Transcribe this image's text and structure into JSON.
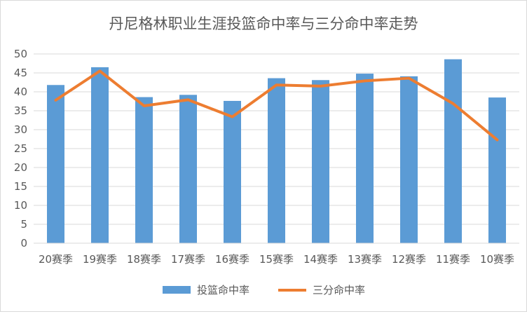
{
  "chart_data": {
    "type": "bar",
    "title": "丹尼格林职业生涯投篮命中率与三分命中率走势",
    "xlabel": "",
    "ylabel": "",
    "categories": [
      "20赛季",
      "19赛季",
      "18赛季",
      "17赛季",
      "16赛季",
      "15赛季",
      "14赛季",
      "13赛季",
      "12赛季",
      "11赛季",
      "10赛季"
    ],
    "ylim": [
      0,
      50
    ],
    "yticks": [
      "0",
      "5",
      "10",
      "15",
      "20",
      "25",
      "30",
      "35",
      "40",
      "45",
      "50"
    ],
    "grid": true,
    "legend_position": "bottom",
    "series": [
      {
        "name": "投篮命中率",
        "type": "bar",
        "color": "#5b9bd5",
        "values": [
          41.8,
          46.5,
          38.6,
          39.2,
          37.6,
          43.6,
          43.1,
          44.8,
          44.1,
          48.6,
          38.5
        ]
      },
      {
        "name": "三分命中率",
        "type": "line",
        "color": "#ed7d31",
        "values": [
          37.8,
          45.5,
          36.3,
          37.9,
          33.4,
          41.8,
          41.5,
          42.9,
          43.6,
          36.9,
          27.3
        ]
      }
    ]
  }
}
